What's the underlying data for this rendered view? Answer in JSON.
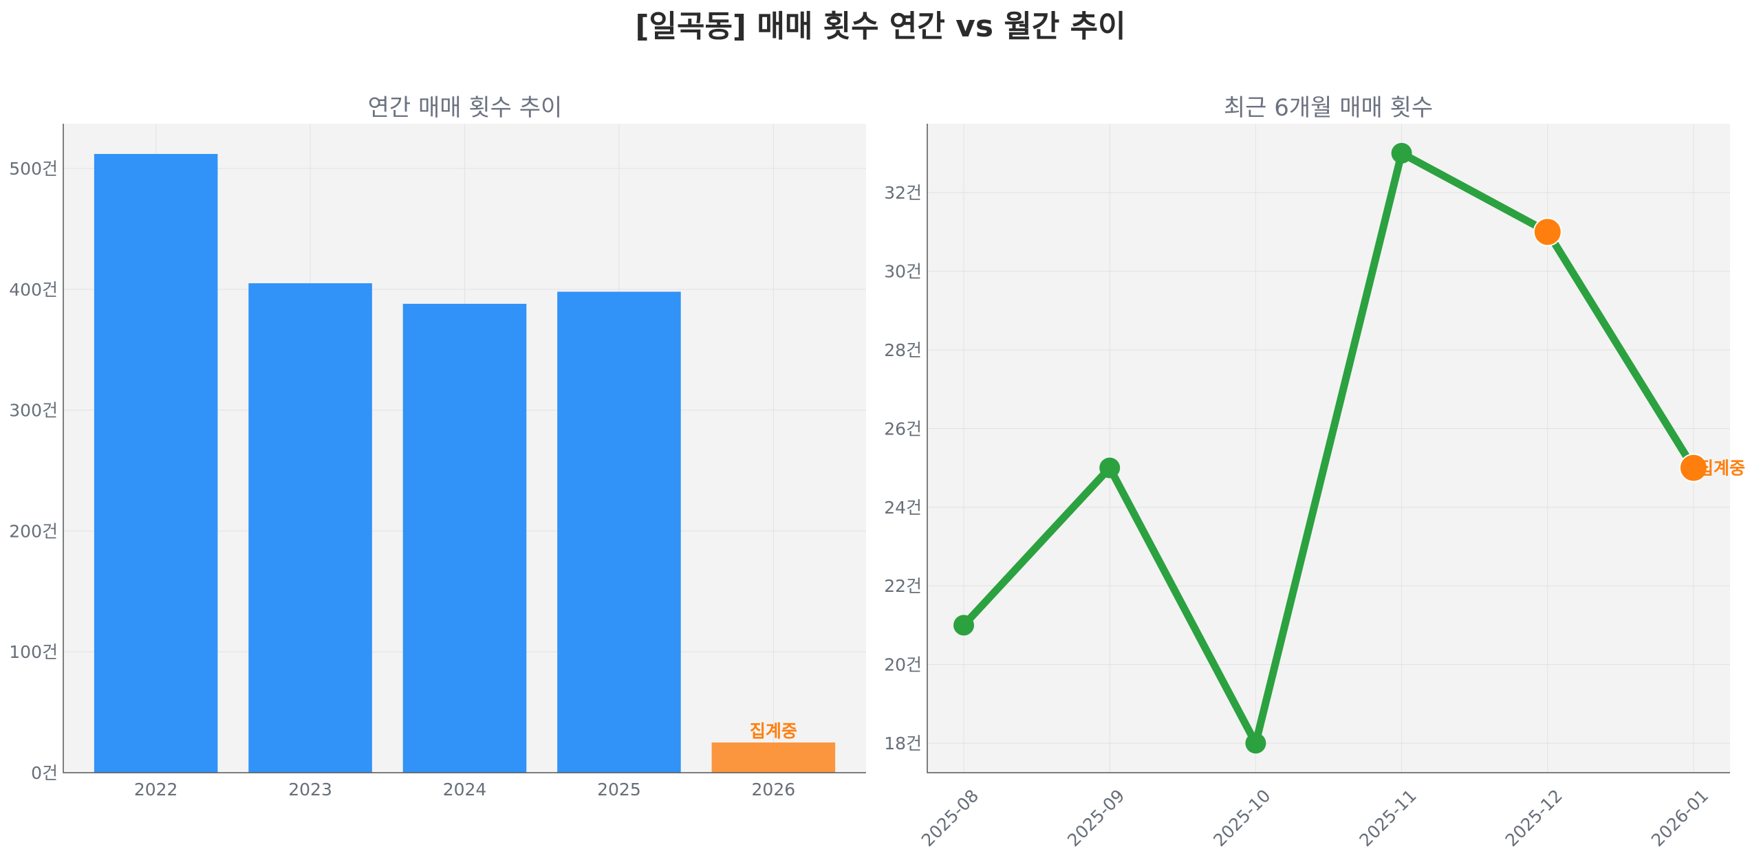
{
  "page": {
    "title": "[일곡동] 매매 횟수 연간 vs 월간 추이"
  },
  "colors": {
    "bar": "#3192f8",
    "bar_highlight": "#fb963e",
    "line": "#2ca140",
    "marker_highlight": "#ff7f0e"
  },
  "chart_data": [
    {
      "type": "bar",
      "title": "연간 매매 횟수 추이",
      "xlabel": "",
      "ylabel": "",
      "categories": [
        "2022",
        "2023",
        "2024",
        "2025",
        "2026"
      ],
      "values": [
        512,
        405,
        388,
        398,
        25
      ],
      "highlight_category": "2026",
      "annotation": {
        "category": "2026",
        "text": "집계중"
      },
      "ylim": [
        0,
        537
      ],
      "yticks": [
        0,
        100,
        200,
        300,
        400,
        500
      ],
      "tick_suffix": "건",
      "grid": true,
      "legend": "none"
    },
    {
      "type": "line",
      "title": "최근 6개월 매매 횟수",
      "xlabel": "",
      "ylabel": "",
      "x": [
        "2025-08",
        "2025-09",
        "2025-10",
        "2025-11",
        "2025-12",
        "2026-01"
      ],
      "values": [
        21,
        25,
        18,
        33,
        31,
        25
      ],
      "highlight_points": [
        "2025-12",
        "2026-01"
      ],
      "annotation": {
        "x": "2026-01",
        "text": "집계중"
      },
      "ylim": [
        17.25,
        33.75
      ],
      "yticks": [
        18,
        20,
        22,
        24,
        26,
        28,
        30,
        32
      ],
      "tick_suffix": "건",
      "grid": true,
      "legend": "none"
    }
  ]
}
